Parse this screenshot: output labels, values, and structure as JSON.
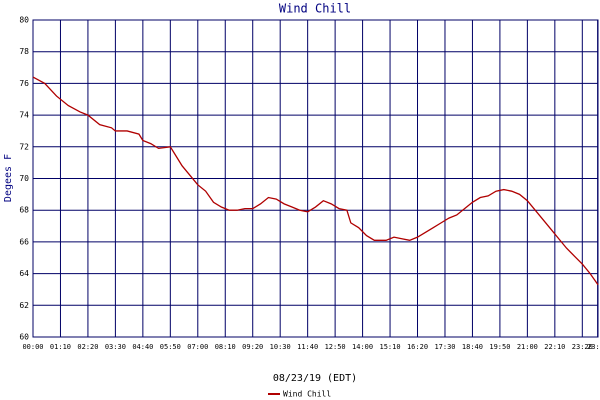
{
  "chart_data": {
    "type": "line",
    "title": "Wind Chill",
    "x_label": "08/23/19 (EDT)",
    "y_label": "Degees F",
    "x": [
      0,
      30,
      60,
      90,
      120,
      140,
      170,
      200,
      210,
      240,
      270,
      280,
      300,
      320,
      350,
      360,
      380,
      400,
      420,
      440,
      460,
      480,
      500,
      520,
      540,
      560,
      580,
      600,
      620,
      640,
      660,
      680,
      700,
      720,
      740,
      760,
      780,
      800,
      810,
      830,
      850,
      870,
      900,
      920,
      940,
      960,
      980,
      1000,
      1020,
      1040,
      1060,
      1080,
      1100,
      1120,
      1140,
      1160,
      1180,
      1200,
      1220,
      1240,
      1260,
      1280,
      1300,
      1320,
      1340,
      1360,
      1380,
      1400,
      1420,
      1440
    ],
    "series": [
      {
        "name": "Wind Chill",
        "color": "#b00000",
        "values": [
          76.4,
          76.0,
          75.2,
          74.6,
          74.2,
          74.0,
          73.4,
          73.2,
          73.0,
          73.0,
          72.8,
          72.4,
          72.2,
          71.9,
          72.0,
          71.6,
          70.8,
          70.2,
          69.6,
          69.2,
          68.5,
          68.2,
          68.0,
          68.0,
          68.1,
          68.1,
          68.4,
          68.8,
          68.7,
          68.4,
          68.2,
          68.0,
          67.9,
          68.2,
          68.6,
          68.4,
          68.1,
          68.0,
          67.2,
          66.9,
          66.4,
          66.1,
          66.1,
          66.3,
          66.2,
          66.1,
          66.3,
          66.6,
          66.9,
          67.2,
          67.5,
          67.7,
          68.1,
          68.5,
          68.8,
          68.9,
          69.2,
          69.3,
          69.2,
          69.0,
          68.6,
          68.0,
          67.4,
          66.8,
          66.2,
          65.6,
          65.1,
          64.6,
          64.0,
          63.3
        ]
      }
    ],
    "xlim": [
      0,
      1440
    ],
    "xticks": [
      {
        "value": 0,
        "label": "00:00"
      },
      {
        "value": 70,
        "label": "01:10"
      },
      {
        "value": 140,
        "label": "02:20"
      },
      {
        "value": 210,
        "label": "03:30"
      },
      {
        "value": 280,
        "label": "04:40"
      },
      {
        "value": 350,
        "label": "05:50"
      },
      {
        "value": 420,
        "label": "07:00"
      },
      {
        "value": 490,
        "label": "08:10"
      },
      {
        "value": 560,
        "label": "09:20"
      },
      {
        "value": 630,
        "label": "10:30"
      },
      {
        "value": 700,
        "label": "11:40"
      },
      {
        "value": 770,
        "label": "12:50"
      },
      {
        "value": 840,
        "label": "14:00"
      },
      {
        "value": 910,
        "label": "15:10"
      },
      {
        "value": 980,
        "label": "16:20"
      },
      {
        "value": 1050,
        "label": "17:30"
      },
      {
        "value": 1120,
        "label": "18:40"
      },
      {
        "value": 1190,
        "label": "19:50"
      },
      {
        "value": 1260,
        "label": "21:00"
      },
      {
        "value": 1330,
        "label": "22:10"
      },
      {
        "value": 1400,
        "label": "23:20"
      },
      {
        "value": 1439,
        "label": "23:59"
      }
    ],
    "ylim": [
      60,
      80
    ],
    "yticks": [
      60,
      62,
      64,
      66,
      68,
      70,
      72,
      74,
      76,
      78,
      80
    ],
    "grid": true,
    "grid_color": "#000066"
  }
}
